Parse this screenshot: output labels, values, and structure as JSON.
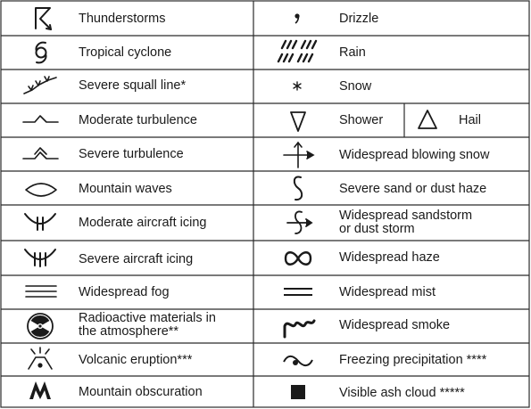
{
  "colors": {
    "ink": "#1a1a1a",
    "rule": "#2b2b2b",
    "background": "#ffffff"
  },
  "left": [
    {
      "label": "Thunderstorms",
      "icon": "thunderstorm-icon"
    },
    {
      "label": "Tropical cyclone",
      "icon": "tropical-cyclone-icon"
    },
    {
      "label": "Severe squall line*",
      "icon": "squall-line-icon"
    },
    {
      "label": "Moderate turbulence",
      "icon": "moderate-turbulence-icon"
    },
    {
      "label": "Severe turbulence",
      "icon": "severe-turbulence-icon"
    },
    {
      "label": "Mountain waves",
      "icon": "mountain-waves-icon"
    },
    {
      "label": "Moderate aircraft icing",
      "icon": "moderate-icing-icon"
    },
    {
      "label": "Severe aircraft icing",
      "icon": "severe-icing-icon"
    },
    {
      "label": "Widespread fog",
      "icon": "fog-icon"
    },
    {
      "label_lines": [
        "Radioactive materials in",
        "the atmosphere**"
      ],
      "icon": "radioactive-icon"
    },
    {
      "label": "Volcanic eruption***",
      "icon": "volcano-icon"
    },
    {
      "label": "Mountain obscuration",
      "icon": "mountain-obscuration-icon"
    }
  ],
  "right": [
    {
      "label": "Drizzle",
      "icon": "drizzle-icon"
    },
    {
      "label": "Rain",
      "icon": "rain-icon"
    },
    {
      "label": "Snow",
      "icon": "snow-icon"
    },
    {
      "label": "Shower",
      "icon": "shower-icon",
      "extra_label": "Hail",
      "extra_icon": "hail-icon"
    },
    {
      "label": "Widespread blowing snow",
      "icon": "blowing-snow-icon"
    },
    {
      "label": "Severe sand or dust haze",
      "icon": "sand-haze-icon"
    },
    {
      "label_lines": [
        "Widespread sandstorm",
        "or dust storm"
      ],
      "icon": "sandstorm-icon"
    },
    {
      "label": "Widespread haze",
      "icon": "haze-icon"
    },
    {
      "label": "Widespread mist",
      "icon": "mist-icon"
    },
    {
      "label": "Widespread smoke",
      "icon": "smoke-icon"
    },
    {
      "label": "Freezing precipitation ****",
      "icon": "freezing-precipitation-icon"
    },
    {
      "label": "Visible ash cloud *****",
      "icon": "ash-cloud-icon"
    }
  ]
}
